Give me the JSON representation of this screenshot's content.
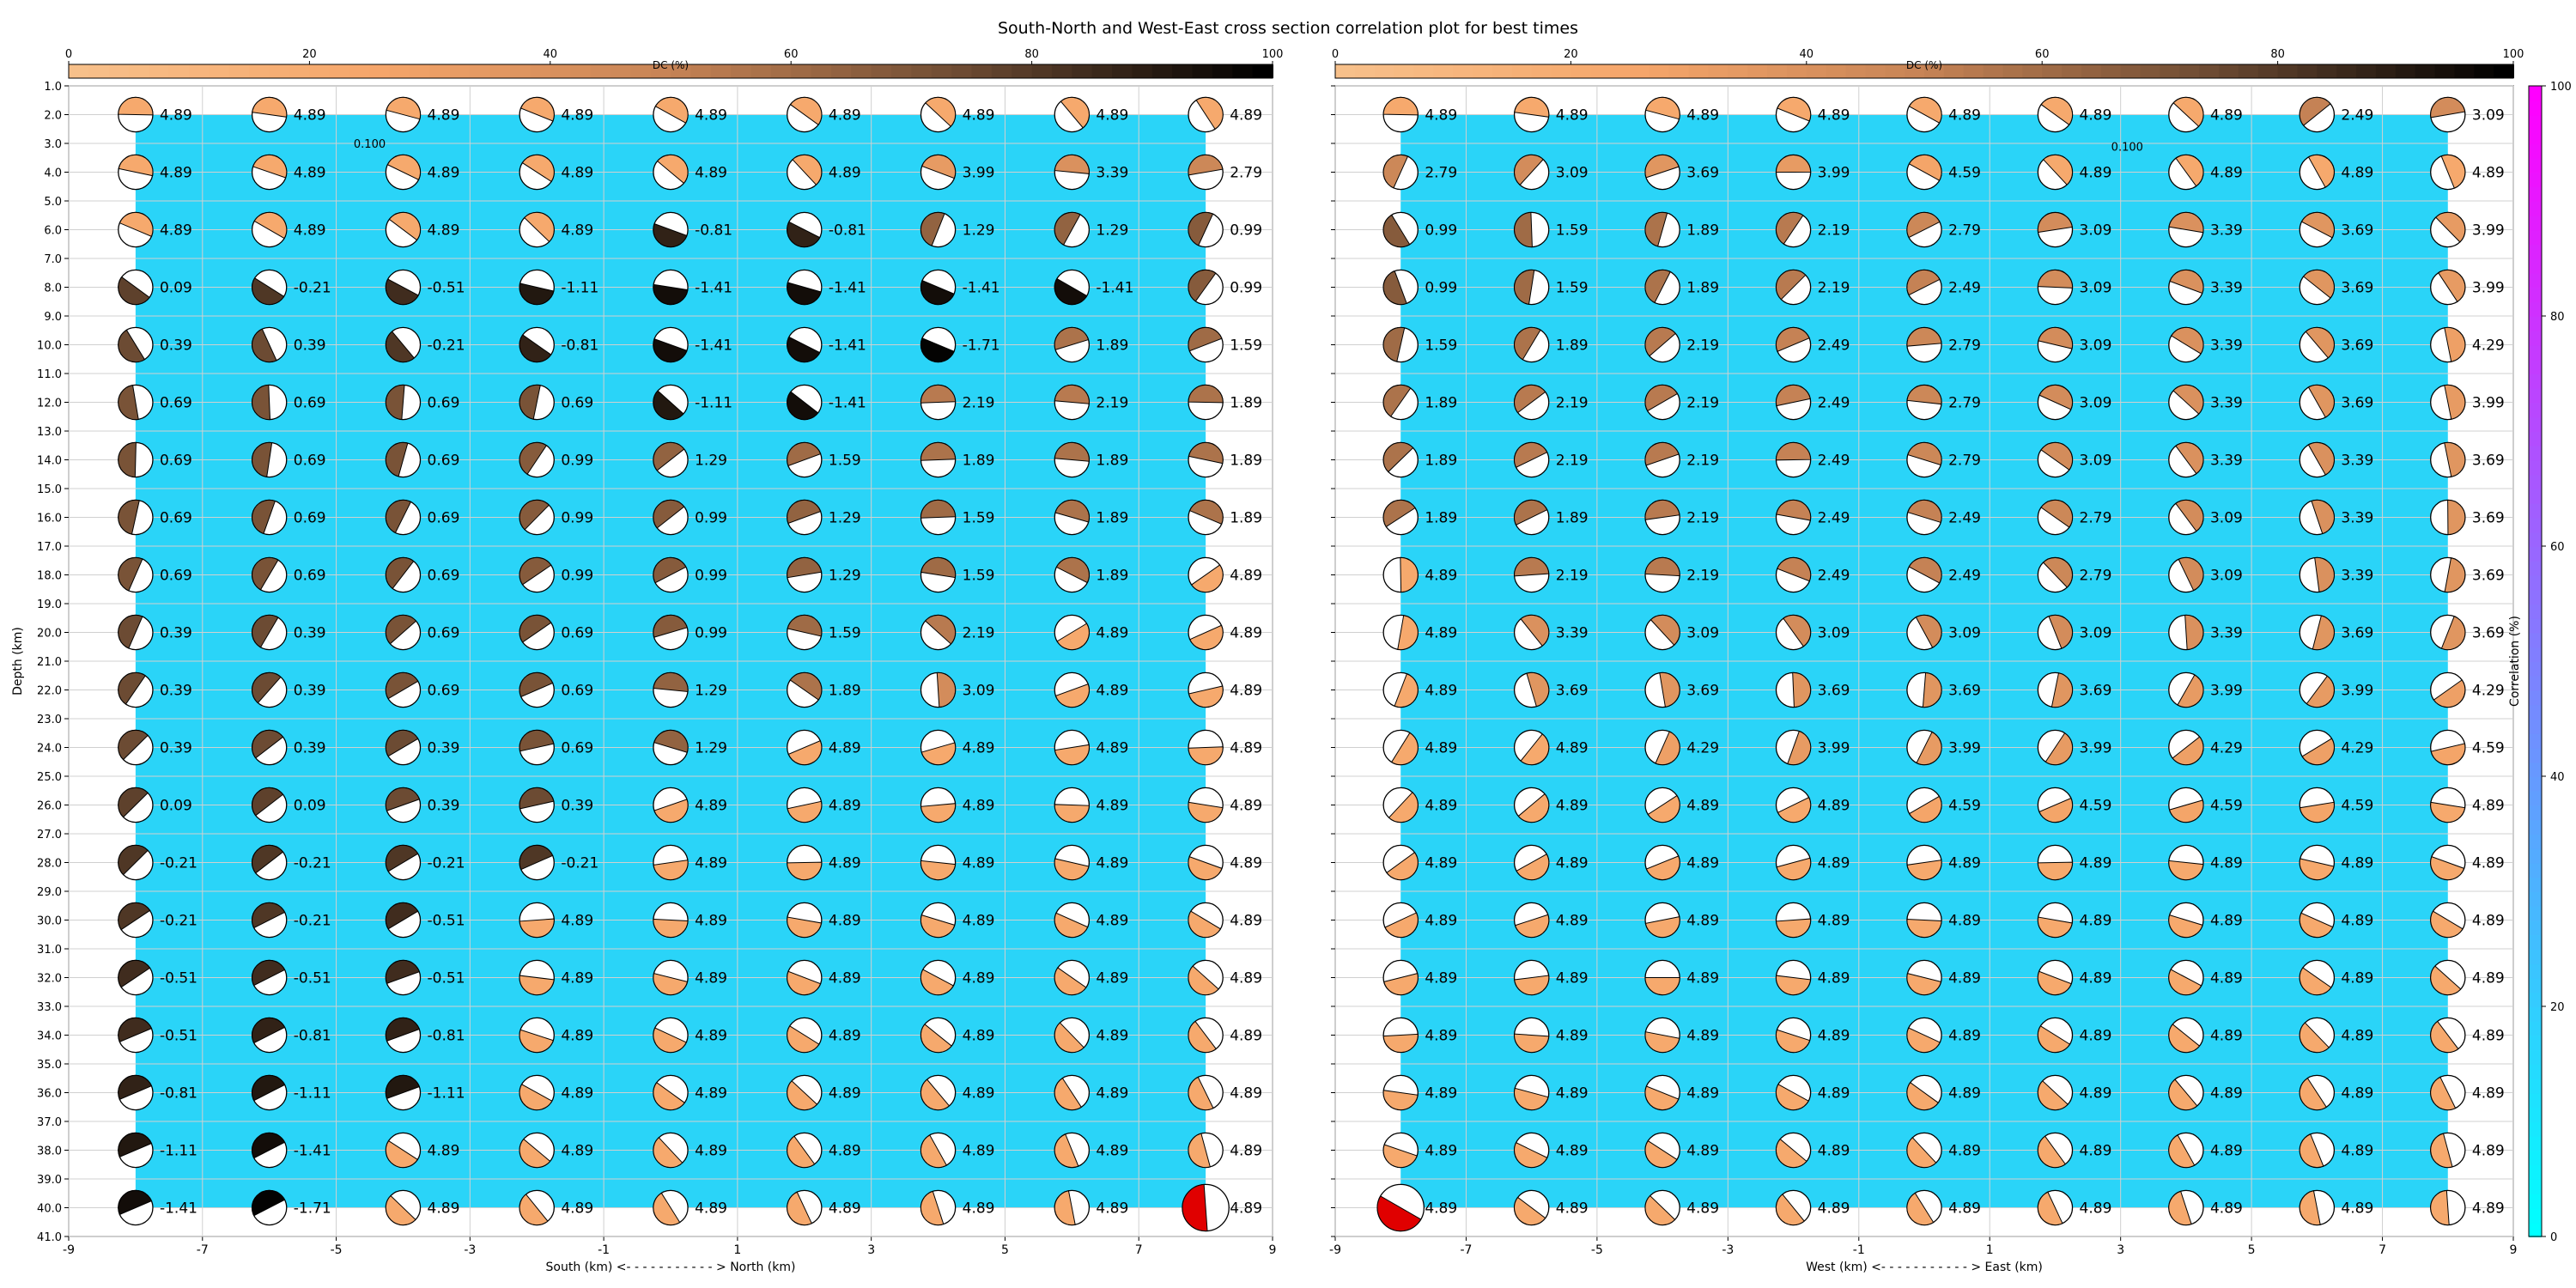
{
  "figure_title": "South-North and West-East cross section correlation plot for best times",
  "colors": {
    "correlation_cmap": [
      "#00ffff",
      "#ff00ff"
    ],
    "dc_cmap": [
      "#f7c08a",
      "#f6a66a",
      "#c68355",
      "#6b4a32",
      "#000000"
    ],
    "grid": "#d0d0d0",
    "mt_highlight": "#e00000"
  },
  "chart_data": [
    {
      "type": "heatmap",
      "subtype": "beachball-depth-section",
      "panel": "south-north",
      "xlabel": "South (km) <- - - - - - - - - - - > North (km)",
      "ylabel": "Depth (km)",
      "xlim": [
        -9,
        9
      ],
      "ylim": [
        41,
        1
      ],
      "x_ticks": [
        "-9",
        "-7",
        "-5",
        "-3",
        "-1",
        "1",
        "3",
        "5",
        "7",
        "9"
      ],
      "y_ticks": [
        "1.0",
        "2.0",
        "3.0",
        "4.0",
        "5.0",
        "6.0",
        "7.0",
        "8.0",
        "9.0",
        "10.0",
        "11.0",
        "12.0",
        "13.0",
        "14.0",
        "15.0",
        "16.0",
        "17.0",
        "18.0",
        "19.0",
        "20.0",
        "21.0",
        "22.0",
        "23.0",
        "24.0",
        "25.0",
        "26.0",
        "27.0",
        "28.0",
        "29.0",
        "30.0",
        "31.0",
        "32.0",
        "33.0",
        "34.0",
        "35.0",
        "36.0",
        "37.0",
        "38.0",
        "39.0",
        "40.0",
        "41.0"
      ],
      "dc_colorbar": {
        "label": "DC (%)",
        "ticks": [
          "0",
          "20",
          "40",
          "60",
          "80",
          "100"
        ]
      },
      "contour_label": "0.100",
      "x": [
        -8,
        -6,
        -4,
        -2,
        0,
        2,
        4,
        6,
        8
      ],
      "depths": [
        2,
        4,
        6,
        8,
        10,
        12,
        14,
        16,
        18,
        20,
        22,
        24,
        26,
        28,
        30,
        32,
        34,
        36,
        38,
        40
      ],
      "values": [
        [
          "4.89",
          "4.89",
          "4.89",
          "4.89",
          "4.89",
          "4.89",
          "4.89",
          "4.89",
          "4.89"
        ],
        [
          "4.89",
          "4.89",
          "4.89",
          "4.89",
          "4.89",
          "4.89",
          "3.99",
          "3.39",
          "2.79"
        ],
        [
          "4.89",
          "4.89",
          "4.89",
          "4.89",
          "-0.81",
          "-0.81",
          "1.29",
          "1.29",
          "0.99"
        ],
        [
          "0.09",
          "-0.21",
          "-0.51",
          "-1.11",
          "-1.41",
          "-1.41",
          "-1.41",
          "-1.41",
          "0.99"
        ],
        [
          "0.39",
          "0.39",
          "-0.21",
          "-0.81",
          "-1.41",
          "-1.41",
          "-1.71",
          "1.89",
          "1.59"
        ],
        [
          "0.69",
          "0.69",
          "0.69",
          "0.69",
          "-1.11",
          "-1.41",
          "2.19",
          "2.19",
          "1.89"
        ],
        [
          "0.69",
          "0.69",
          "0.69",
          "0.99",
          "1.29",
          "1.59",
          "1.89",
          "1.89",
          "1.89"
        ],
        [
          "0.69",
          "0.69",
          "0.69",
          "0.99",
          "0.99",
          "1.29",
          "1.59",
          "1.89",
          "1.89"
        ],
        [
          "0.69",
          "0.69",
          "0.69",
          "0.99",
          "0.99",
          "1.29",
          "1.59",
          "1.89",
          "4.89"
        ],
        [
          "0.39",
          "0.39",
          "0.69",
          "0.69",
          "0.99",
          "1.59",
          "2.19",
          "4.89",
          "4.89"
        ],
        [
          "0.39",
          "0.39",
          "0.69",
          "0.69",
          "1.29",
          "1.89",
          "3.09",
          "4.89",
          "4.89"
        ],
        [
          "0.39",
          "0.39",
          "0.39",
          "0.69",
          "1.29",
          "4.89",
          "4.89",
          "4.89",
          "4.89"
        ],
        [
          "0.09",
          "0.09",
          "0.39",
          "0.39",
          "4.89",
          "4.89",
          "4.89",
          "4.89",
          "4.89"
        ],
        [
          "-0.21",
          "-0.21",
          "-0.21",
          "-0.21",
          "4.89",
          "4.89",
          "4.89",
          "4.89",
          "4.89"
        ],
        [
          "-0.21",
          "-0.21",
          "-0.51",
          "4.89",
          "4.89",
          "4.89",
          "4.89",
          "4.89",
          "4.89"
        ],
        [
          "-0.51",
          "-0.51",
          "-0.51",
          "4.89",
          "4.89",
          "4.89",
          "4.89",
          "4.89",
          "4.89"
        ],
        [
          "-0.51",
          "-0.81",
          "-0.81",
          "4.89",
          "4.89",
          "4.89",
          "4.89",
          "4.89",
          "4.89"
        ],
        [
          "-0.81",
          "-1.11",
          "-1.11",
          "4.89",
          "4.89",
          "4.89",
          "4.89",
          "4.89",
          "4.89"
        ],
        [
          "-1.11",
          "-1.41",
          "4.89",
          "4.89",
          "4.89",
          "4.89",
          "4.89",
          "4.89",
          "4.89"
        ],
        [
          "-1.41",
          "-1.71",
          "4.89",
          "4.89",
          "4.89",
          "4.89",
          "4.89",
          "4.89",
          "4.89"
        ]
      ],
      "highlight": {
        "x": 8,
        "depth": 40
      },
      "grid": true
    },
    {
      "type": "heatmap",
      "subtype": "beachball-depth-section",
      "panel": "west-east",
      "xlabel": "West (km) <- - - - - - - - - - - > East (km)",
      "ylabel": "",
      "xlim": [
        -9,
        9
      ],
      "ylim": [
        41,
        1
      ],
      "x_ticks": [
        "-9",
        "-7",
        "-5",
        "-3",
        "-1",
        "1",
        "3",
        "5",
        "7",
        "9"
      ],
      "dc_colorbar": {
        "label": "DC (%)",
        "ticks": [
          "0",
          "20",
          "40",
          "60",
          "80",
          "100"
        ]
      },
      "correlation_colorbar": {
        "label": "Correlation (%)",
        "ticks": [
          "0",
          "20",
          "40",
          "60",
          "80",
          "100"
        ]
      },
      "contour_label": "0.100",
      "x": [
        -8,
        -6,
        -4,
        -2,
        0,
        2,
        4,
        6,
        8
      ],
      "depths": [
        2,
        4,
        6,
        8,
        10,
        12,
        14,
        16,
        18,
        20,
        22,
        24,
        26,
        28,
        30,
        32,
        34,
        36,
        38,
        40
      ],
      "values": [
        [
          "4.89",
          "4.89",
          "4.89",
          "4.89",
          "4.89",
          "4.89",
          "4.89",
          "2.49",
          "3.09"
        ],
        [
          "2.79",
          "3.09",
          "3.69",
          "3.99",
          "4.59",
          "4.89",
          "4.89",
          "4.89",
          "4.89"
        ],
        [
          "0.99",
          "1.59",
          "1.89",
          "2.19",
          "2.79",
          "3.09",
          "3.39",
          "3.69",
          "3.99"
        ],
        [
          "0.99",
          "1.59",
          "1.89",
          "2.19",
          "2.49",
          "3.09",
          "3.39",
          "3.69",
          "3.99"
        ],
        [
          "1.59",
          "1.89",
          "2.19",
          "2.49",
          "2.79",
          "3.09",
          "3.39",
          "3.69",
          "4.29"
        ],
        [
          "1.89",
          "2.19",
          "2.19",
          "2.49",
          "2.79",
          "3.09",
          "3.39",
          "3.69",
          "3.99"
        ],
        [
          "1.89",
          "2.19",
          "2.19",
          "2.49",
          "2.79",
          "3.09",
          "3.39",
          "3.39",
          "3.69"
        ],
        [
          "1.89",
          "1.89",
          "2.19",
          "2.49",
          "2.49",
          "2.79",
          "3.09",
          "3.39",
          "3.69"
        ],
        [
          "4.89",
          "2.19",
          "2.19",
          "2.49",
          "2.49",
          "2.79",
          "3.09",
          "3.39",
          "3.69"
        ],
        [
          "4.89",
          "3.39",
          "3.09",
          "3.09",
          "3.09",
          "3.09",
          "3.39",
          "3.69",
          "3.69"
        ],
        [
          "4.89",
          "3.69",
          "3.69",
          "3.69",
          "3.69",
          "3.69",
          "3.99",
          "3.99",
          "4.29"
        ],
        [
          "4.89",
          "4.89",
          "4.29",
          "3.99",
          "3.99",
          "3.99",
          "4.29",
          "4.29",
          "4.59"
        ],
        [
          "4.89",
          "4.89",
          "4.89",
          "4.89",
          "4.59",
          "4.59",
          "4.59",
          "4.59",
          "4.89"
        ],
        [
          "4.89",
          "4.89",
          "4.89",
          "4.89",
          "4.89",
          "4.89",
          "4.89",
          "4.89",
          "4.89"
        ],
        [
          "4.89",
          "4.89",
          "4.89",
          "4.89",
          "4.89",
          "4.89",
          "4.89",
          "4.89",
          "4.89"
        ],
        [
          "4.89",
          "4.89",
          "4.89",
          "4.89",
          "4.89",
          "4.89",
          "4.89",
          "4.89",
          "4.89"
        ],
        [
          "4.89",
          "4.89",
          "4.89",
          "4.89",
          "4.89",
          "4.89",
          "4.89",
          "4.89",
          "4.89"
        ],
        [
          "4.89",
          "4.89",
          "4.89",
          "4.89",
          "4.89",
          "4.89",
          "4.89",
          "4.89",
          "4.89"
        ],
        [
          "4.89",
          "4.89",
          "4.89",
          "4.89",
          "4.89",
          "4.89",
          "4.89",
          "4.89",
          "4.89"
        ],
        [
          "4.89",
          "4.89",
          "4.89",
          "4.89",
          "4.89",
          "4.89",
          "4.89",
          "4.89",
          "4.89"
        ]
      ],
      "highlight": {
        "x": -8,
        "depth": 40
      },
      "grid": true
    }
  ]
}
